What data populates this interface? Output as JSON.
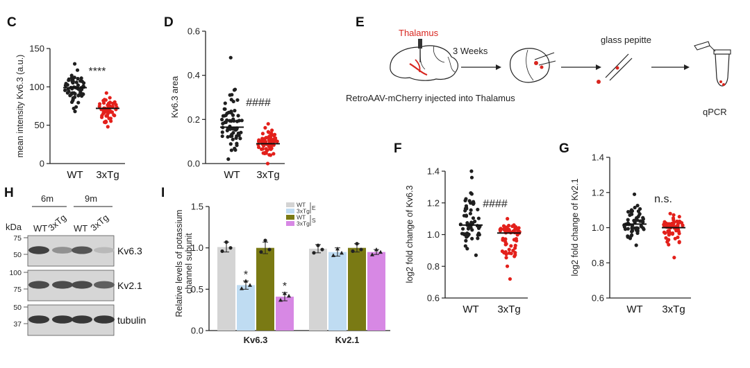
{
  "colors": {
    "wt": "#1f1f1f",
    "tg": "#e3201b",
    "bar_wt_e": "#d4d4d4",
    "bar_tg_e": "#bfdcf2",
    "bar_wt_s": "#7a7a14",
    "bar_tg_s": "#d788e4"
  },
  "chart_data": [
    {
      "panel": "C",
      "type": "scatter",
      "ylabel": "mean intensity Kv6.3 (a.u.)",
      "ylim": [
        0,
        150
      ],
      "yticks": [
        "0",
        "50",
        "100",
        "150"
      ],
      "categories": [
        "WT",
        "3xTg"
      ],
      "series": [
        {
          "name": "WT",
          "mean": 99,
          "min": 68,
          "max": 130,
          "n": 60
        },
        {
          "name": "3xTg",
          "mean": 72,
          "min": 48,
          "max": 92,
          "n": 50
        }
      ],
      "annotation": "****"
    },
    {
      "panel": "D",
      "type": "scatter",
      "ylabel": "Kv6.3 area",
      "ylim": [
        0,
        0.6
      ],
      "yticks": [
        "0.0",
        "0.2",
        "0.4",
        "0.6"
      ],
      "categories": [
        "WT",
        "3xTg"
      ],
      "series": [
        {
          "name": "WT",
          "mean": 0.165,
          "min": 0.02,
          "max": 0.48,
          "n": 65
        },
        {
          "name": "3xTg",
          "mean": 0.09,
          "min": 0.0,
          "max": 0.18,
          "n": 70
        }
      ],
      "annotation": "####"
    },
    {
      "panel": "F",
      "type": "scatter",
      "ylabel": "log2 fold change of Kv6.3",
      "ylim": [
        0.6,
        1.4
      ],
      "yticks": [
        "0.6",
        "0.8",
        "1.0",
        "1.2",
        "1.4"
      ],
      "categories": [
        "WT",
        "3xTg"
      ],
      "series": [
        {
          "name": "WT",
          "mean": 1.06,
          "min": 0.87,
          "max": 1.4,
          "n": 60
        },
        {
          "name": "3xTg",
          "mean": 1.01,
          "min": 0.72,
          "max": 1.1,
          "n": 65
        }
      ],
      "annotation": "####"
    },
    {
      "panel": "G",
      "type": "scatter",
      "ylabel": "log2 fold change of Kv2.1",
      "ylim": [
        0.6,
        1.4
      ],
      "yticks": [
        "0.6",
        "0.8",
        "1.0",
        "1.2",
        "1.4"
      ],
      "categories": [
        "WT",
        "3xTg"
      ],
      "series": [
        {
          "name": "WT",
          "mean": 1.02,
          "min": 0.9,
          "max": 1.19,
          "n": 55
        },
        {
          "name": "3xTg",
          "mean": 1.0,
          "min": 0.83,
          "max": 1.08,
          "n": 65
        }
      ],
      "annotation": "n.s."
    },
    {
      "panel": "I",
      "type": "bar",
      "ylabel_lines": [
        "Relative levels of potassium",
        "channel subunit"
      ],
      "ylim": [
        0,
        1.5
      ],
      "yticks": [
        "0.0",
        "0.5",
        "1.0",
        "1.5"
      ],
      "categories": [
        "Kv6.3",
        "Kv2.1"
      ],
      "series": [
        {
          "name": "WT E",
          "values": [
            1.01,
            0.99
          ],
          "errors": [
            0.06,
            0.05
          ],
          "points": [
            [
              0.96,
              1.07,
              1.0
            ],
            [
              0.94,
              1.03,
              0.98
            ]
          ]
        },
        {
          "name": "3xTg E",
          "values": [
            0.55,
            0.95
          ],
          "errors": [
            0.05,
            0.05
          ],
          "points": [
            [
              0.51,
              0.6,
              0.55
            ],
            [
              0.91,
              0.99,
              0.94
            ]
          ]
        },
        {
          "name": "WT S",
          "values": [
            1.0,
            1.0
          ],
          "errors": [
            0.07,
            0.05
          ],
          "points": [
            [
              0.95,
              1.09,
              0.98
            ],
            [
              0.96,
              1.05,
              0.98
            ]
          ]
        },
        {
          "name": "3xTg S",
          "values": [
            0.41,
            0.95
          ],
          "errors": [
            0.05,
            0.03
          ],
          "points": [
            [
              0.37,
              0.45,
              0.42
            ],
            [
              0.92,
              0.98,
              0.95
            ]
          ]
        }
      ],
      "legend": [
        {
          "label": "WT",
          "tag": "E"
        },
        {
          "label": "3xTg",
          "tag": "E"
        },
        {
          "label": "WT",
          "tag": "S"
        },
        {
          "label": "3xTg",
          "tag": "S"
        }
      ],
      "significance": [
        "*",
        "*"
      ]
    }
  ],
  "western": {
    "label": "H",
    "groups": [
      "6m",
      "9m"
    ],
    "kda_label": "kDa",
    "lanes": [
      "WT",
      "3xTg",
      "WT",
      "3xTg"
    ],
    "blots": [
      {
        "name": "Kv6.3",
        "markers": [
          "75",
          "50"
        ],
        "intensity": [
          0.85,
          0.45,
          0.75,
          0.25
        ]
      },
      {
        "name": "Kv2.1",
        "markers": [
          "100",
          "75"
        ],
        "intensity": [
          0.8,
          0.8,
          0.8,
          0.7
        ]
      },
      {
        "name": "tubulin",
        "markers": [
          "50",
          "37"
        ],
        "intensity": [
          0.9,
          0.9,
          0.9,
          0.9
        ]
      }
    ]
  },
  "schematic": {
    "label": "E",
    "region": "Thalamus",
    "duration": "3 Weeks",
    "tool": "glass pepitte",
    "caption": "RetroAAV-mCherry injected into Thalamus",
    "readout": "qPCR"
  }
}
